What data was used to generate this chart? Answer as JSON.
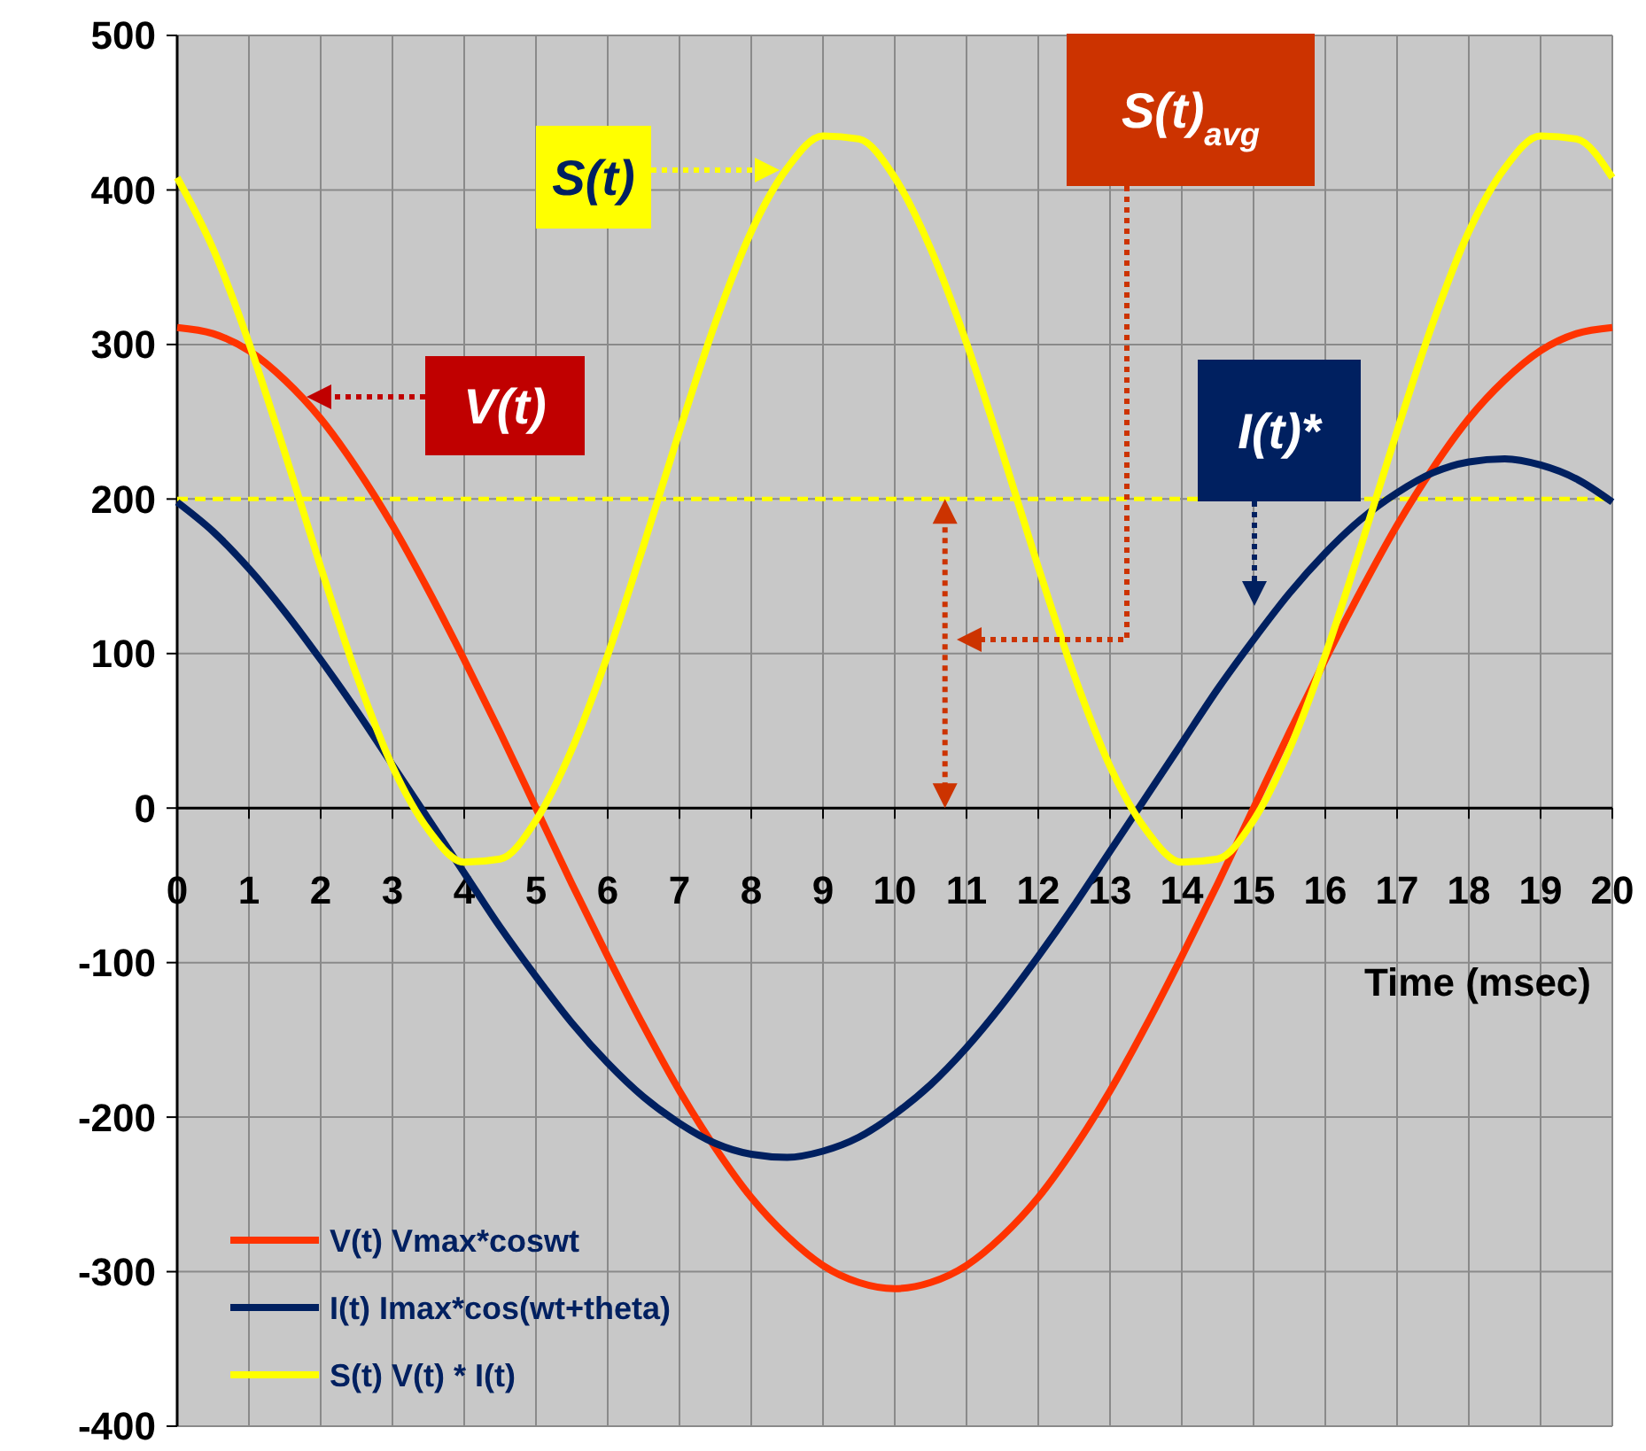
{
  "chart_data": {
    "type": "line",
    "xlabel": "Time (msec)",
    "x": [
      0,
      0.5,
      1,
      1.5,
      2,
      2.5,
      3,
      3.5,
      4,
      4.5,
      5,
      5.5,
      6,
      6.5,
      7,
      7.5,
      8,
      8.5,
      9,
      9.5,
      10,
      10.5,
      11,
      11.5,
      12,
      12.5,
      13,
      13.5,
      14,
      14.5,
      15,
      15.5,
      16,
      16.5,
      17,
      17.5,
      18,
      18.5,
      19,
      19.5,
      20
    ],
    "series": [
      {
        "name": "V(t) Vmax*coswt",
        "color": "#ff3300",
        "values": [
          311,
          307,
          296,
          277,
          252,
          220,
          183,
          141,
          96,
          49,
          0,
          -49,
          -96,
          -141,
          -183,
          -220,
          -252,
          -277,
          -296,
          -307,
          -311,
          -307,
          -296,
          -277,
          -252,
          -220,
          -183,
          -141,
          -96,
          -49,
          0,
          49,
          96,
          141,
          183,
          220,
          252,
          277,
          296,
          307,
          311
        ]
      },
      {
        "name": "I(t) Imax*cos(wt+theta)",
        "color": "#002060",
        "values": [
          198,
          179,
          155,
          127,
          96,
          63,
          28,
          -7,
          -42,
          -77,
          -109,
          -139,
          -165,
          -187,
          -204,
          -217,
          -224,
          -226,
          -222,
          -213,
          -198,
          -179,
          -155,
          -127,
          -96,
          -63,
          -28,
          7,
          42,
          77,
          109,
          139,
          165,
          187,
          204,
          217,
          224,
          226,
          222,
          213,
          198
        ]
      },
      {
        "name": "S(t) V(t) * I(t)",
        "color": "#ffff00",
        "values": [
          408,
          362,
          301,
          230,
          156,
          86,
          27,
          -14,
          -35,
          -33,
          -8,
          38,
          99,
          170,
          244,
          314,
          373,
          414,
          435,
          433,
          408,
          362,
          301,
          230,
          156,
          86,
          27,
          -14,
          -35,
          -33,
          -8,
          38,
          99,
          170,
          244,
          314,
          373,
          414,
          435,
          433,
          408
        ]
      }
    ],
    "xlim": [
      0,
      20
    ],
    "xticks": [
      0,
      1,
      2,
      3,
      4,
      5,
      6,
      7,
      8,
      9,
      10,
      11,
      12,
      13,
      14,
      15,
      16,
      17,
      18,
      19,
      20
    ],
    "ylim": [
      -400,
      500
    ],
    "yticks": [
      -400,
      -300,
      -200,
      -100,
      0,
      100,
      200,
      300,
      400,
      500
    ],
    "grid": true,
    "legend": "bottom left",
    "line_style": "solid",
    "ref_lines": [
      {
        "axis": "y",
        "value": 200,
        "color": "#ffff00",
        "line_style": "dashed"
      }
    ],
    "annotations": [
      "S(t)",
      "V(t)",
      "I(t)*",
      "S(t)$_{avg}$"
    ]
  }
}
